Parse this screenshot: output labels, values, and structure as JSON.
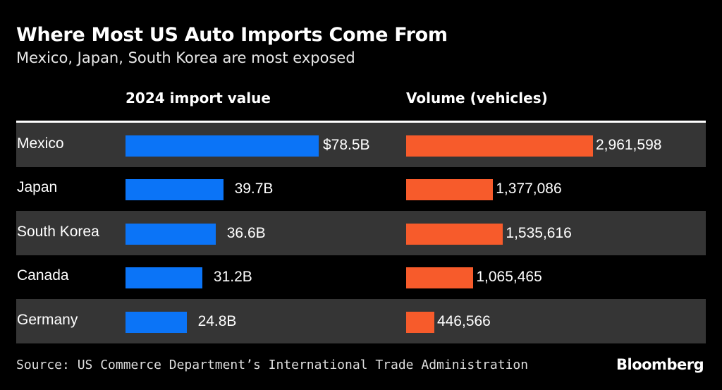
{
  "chart_data": {
    "type": "bar",
    "title": "Where Most US Auto Imports Come From",
    "subtitle": "Mexico, Japan, South Korea are most exposed",
    "categories": [
      "Mexico",
      "Japan",
      "South Korea",
      "Canada",
      "Germany"
    ],
    "series": [
      {
        "name": "2024 import value",
        "values": [
          78.5,
          39.7,
          36.6,
          31.2,
          24.8
        ],
        "labels": [
          "$78.5B",
          "39.7B",
          "36.6B",
          "31.2B",
          "24.8B"
        ],
        "color": "#0b74f7"
      },
      {
        "name": "Volume (vehicles)",
        "values": [
          2961598,
          1377086,
          1535616,
          1065465,
          446566
        ],
        "labels": [
          "2,961,598",
          "1,377,086",
          "1,535,616",
          "1,065,465",
          "446,566"
        ],
        "color": "#f75b2b"
      }
    ],
    "orientation": "horizontal",
    "grid": false,
    "row_banding": true
  },
  "footer": {
    "source": "Source: US Commerce Department’s International Trade Administration",
    "logo": "Bloomberg"
  }
}
